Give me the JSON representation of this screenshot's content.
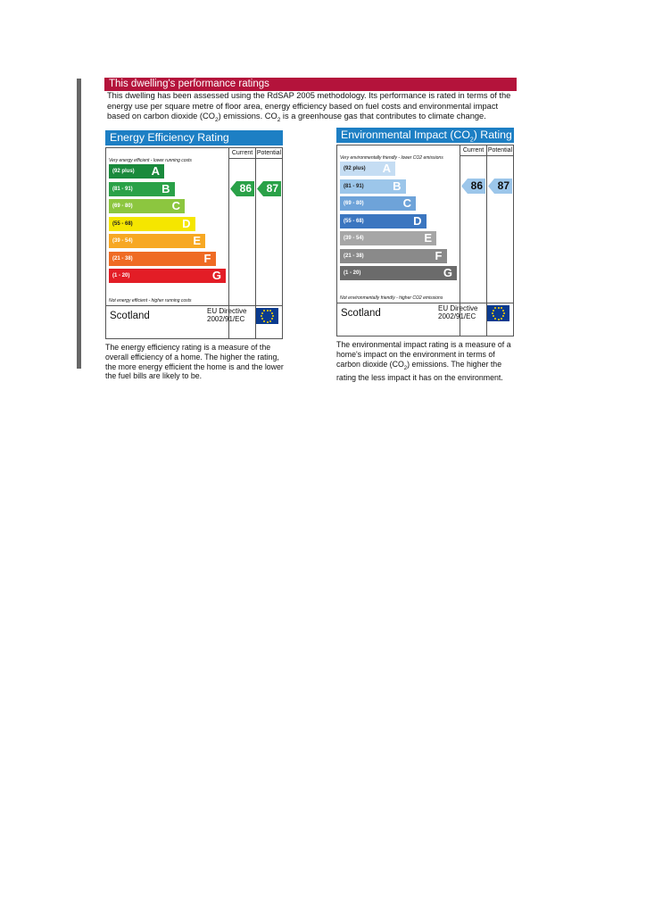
{
  "header": {
    "banner": "This dwelling's performance ratings",
    "intro_part1": "This dwelling has been assessed using the RdSAP 2005 methodology. Its performance is rated in terms of the energy use per square metre of floor area, energy efficiency based on fuel costs and environmental impact based on carbon dioxide (CO",
    "intro_sub1": "2",
    "intro_part2": ") emissions. CO",
    "intro_sub2": "2",
    "intro_part3": " is a greenhouse gas that contributes to climate change."
  },
  "energy": {
    "title": "Energy Efficiency Rating",
    "col_current": "Current",
    "col_potential": "Potential",
    "top_note": "Very energy efficient - lower running costs",
    "bottom_note": "Not energy efficient - higher running costs",
    "bands": [
      {
        "range": "(92 plus)",
        "letter": "A",
        "color": "#1a8a3c"
      },
      {
        "range": "(81 - 91)",
        "letter": "B",
        "color": "#2aa148"
      },
      {
        "range": "(69 - 80)",
        "letter": "C",
        "color": "#8cc63f"
      },
      {
        "range": "(55 - 68)",
        "letter": "D",
        "color": "#f5e600"
      },
      {
        "range": "(39 - 54)",
        "letter": "E",
        "color": "#f7a823"
      },
      {
        "range": "(21 - 38)",
        "letter": "F",
        "color": "#ef6b24"
      },
      {
        "range": "(1 - 20)",
        "letter": "G",
        "color": "#e31d26"
      }
    ],
    "current": "86",
    "potential": "87",
    "current_color": "#2aa148",
    "potential_color": "#2aa148",
    "country": "Scotland",
    "directive_line1": "EU Directive",
    "directive_line2": "2002/91/EC",
    "description": "The energy efficiency rating is a measure of the overall efficiency of a home. The higher the rating, the more energy efficient the home is and the lower the fuel bills are likely to be."
  },
  "environment": {
    "title_part1": "Environmental Impact (CO",
    "title_sub": "2",
    "title_part2": ") Rating",
    "col_current": "Current",
    "col_potential": "Potential",
    "top_note": "Very environmentally friendly - lower CO2 emissions",
    "bottom_note": "Not environmentally friendly - higher CO2 emissions",
    "bands": [
      {
        "range": "(92 plus)",
        "letter": "A",
        "color": "#c5ddf3"
      },
      {
        "range": "(81 - 91)",
        "letter": "B",
        "color": "#9cc6ea"
      },
      {
        "range": "(69 - 80)",
        "letter": "C",
        "color": "#6ea3d9"
      },
      {
        "range": "(55 - 68)",
        "letter": "D",
        "color": "#3b76c0"
      },
      {
        "range": "(39 - 54)",
        "letter": "E",
        "color": "#a6a6a6"
      },
      {
        "range": "(21 - 38)",
        "letter": "F",
        "color": "#8a8a8a"
      },
      {
        "range": "(1 - 20)",
        "letter": "G",
        "color": "#6b6b6b"
      }
    ],
    "current": "86",
    "potential": "87",
    "current_color": "#9cc6ea",
    "potential_color": "#9cc6ea",
    "country": "Scotland",
    "directive_line1": "EU Directive",
    "directive_line2": "2002/91/EC",
    "description_part1": "The environmental impact rating is a measure of a home's impact on the environment in terms of carbon dioxide (CO",
    "description_sub": "2",
    "description_part2": ") emissions. The higher the rating the less impact it has on the environment."
  }
}
